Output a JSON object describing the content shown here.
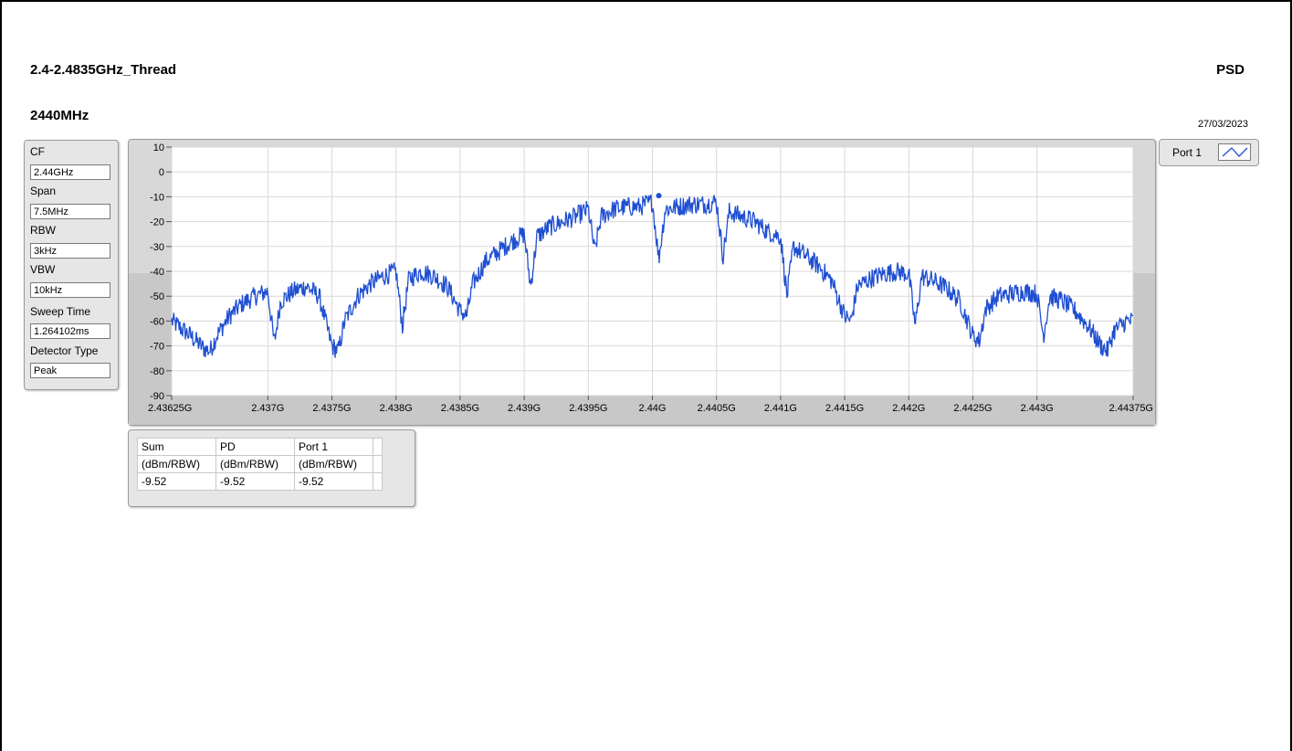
{
  "header": {
    "title": "2.4-2.4835GHz_Thread",
    "mode": "PSD",
    "frequency": "2440MHz",
    "date": "27/03/2023"
  },
  "settings": [
    {
      "label": "CF",
      "value": "2.44GHz"
    },
    {
      "label": "Span",
      "value": "7.5MHz"
    },
    {
      "label": "RBW",
      "value": "3kHz"
    },
    {
      "label": "VBW",
      "value": "10kHz"
    },
    {
      "label": "Sweep Time",
      "value": "1.264102ms"
    },
    {
      "label": "Detector Type",
      "value": "Peak"
    }
  ],
  "legend": {
    "label": "Port 1"
  },
  "results": {
    "headers": [
      "Sum",
      "PD",
      "Port 1"
    ],
    "units": [
      "(dBm/RBW)",
      "(dBm/RBW)",
      "(dBm/RBW)"
    ],
    "values": [
      "-9.52",
      "-9.52",
      "-9.52"
    ]
  },
  "colors": {
    "trace": "#1f4fd1",
    "plot_bg": "#ffffff",
    "panel": "#e6e6e6"
  },
  "chart_data": {
    "type": "line",
    "title": "",
    "xlabel": "",
    "ylabel": "",
    "xlim": [
      2.43625,
      2.44375
    ],
    "ylim": [
      -90,
      10
    ],
    "grid": true,
    "y_ticks": [
      "10",
      "0",
      "-10",
      "-20",
      "-30",
      "-40",
      "-50",
      "-60",
      "-70",
      "-80",
      "-90"
    ],
    "y_tick_values": [
      10,
      0,
      -10,
      -20,
      -30,
      -40,
      -50,
      -60,
      -70,
      -80,
      -90
    ],
    "x_tick_labels": [
      "2.43625G",
      "2.437G",
      "2.4375G",
      "2.438G",
      "2.4385G",
      "2.439G",
      "2.4395G",
      "2.44G",
      "2.4405G",
      "2.441G",
      "2.4415G",
      "2.442G",
      "2.4425G",
      "2.443G",
      "2.44375G"
    ],
    "x_tick_values": [
      2.43625,
      2.437,
      2.4375,
      2.438,
      2.4385,
      2.439,
      2.4395,
      2.44,
      2.4405,
      2.441,
      2.4415,
      2.442,
      2.4425,
      2.443,
      2.44375
    ],
    "series": [
      {
        "name": "Port 1",
        "x": [
          2.43625,
          2.4363,
          2.4364,
          2.4365,
          2.43655,
          2.4366,
          2.4367,
          2.4368,
          2.4369,
          2.437,
          2.43705,
          2.4371,
          2.4372,
          2.4373,
          2.4374,
          2.4375,
          2.43755,
          2.4376,
          2.4377,
          2.4378,
          2.4379,
          2.438,
          2.43805,
          2.4381,
          2.4382,
          2.4383,
          2.4384,
          2.4385,
          2.43855,
          2.4386,
          2.4387,
          2.4388,
          2.4389,
          2.439,
          2.43905,
          2.4391,
          2.4392,
          2.4393,
          2.4394,
          2.4395,
          2.43955,
          2.4396,
          2.4397,
          2.4398,
          2.4399,
          2.44,
          2.44005,
          2.4401,
          2.4402,
          2.4403,
          2.4404,
          2.4405,
          2.44055,
          2.4406,
          2.4407,
          2.4408,
          2.4409,
          2.441,
          2.44105,
          2.4411,
          2.4412,
          2.4413,
          2.4414,
          2.4415,
          2.44155,
          2.4416,
          2.4417,
          2.4418,
          2.4419,
          2.442,
          2.44205,
          2.4421,
          2.4422,
          2.4423,
          2.4424,
          2.4425,
          2.44255,
          2.4426,
          2.4427,
          2.4428,
          2.4429,
          2.443,
          2.44305,
          2.4431,
          2.4432,
          2.4433,
          2.4434,
          2.4435,
          2.44355,
          2.4436,
          2.4437,
          2.44375
        ],
        "y": [
          -60,
          -62,
          -66,
          -71,
          -72,
          -66,
          -58,
          -53,
          -50,
          -48,
          -69,
          -52,
          -48,
          -46,
          -50,
          -70,
          -72,
          -60,
          -50,
          -45,
          -42,
          -40,
          -62,
          -43,
          -40,
          -42,
          -46,
          -56,
          -58,
          -45,
          -36,
          -32,
          -28,
          -25,
          -46,
          -26,
          -22,
          -20,
          -18,
          -15,
          -32,
          -18,
          -15,
          -14,
          -14,
          -12,
          -35,
          -15,
          -14,
          -13,
          -13,
          -12,
          -34,
          -16,
          -18,
          -20,
          -24,
          -26,
          -50,
          -30,
          -34,
          -38,
          -44,
          -58,
          -60,
          -46,
          -43,
          -41,
          -40,
          -41,
          -62,
          -42,
          -44,
          -47,
          -52,
          -66,
          -68,
          -55,
          -50,
          -49,
          -48,
          -49,
          -66,
          -50,
          -52,
          -56,
          -62,
          -70,
          -72,
          -64,
          -60,
          -60
        ]
      }
    ],
    "marker": {
      "x": 2.44005,
      "y": -9.52
    }
  }
}
